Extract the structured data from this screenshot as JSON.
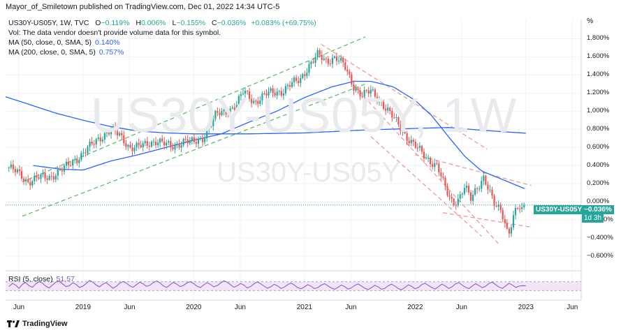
{
  "header": {
    "publisher_line": "Mayor_of_Smiletown published on TradingView.com, Dec 01, 2022 14:34 UTC-5",
    "unit": "%"
  },
  "legend": {
    "symbol_line": "US30Y-US05Y, 1W, TVC",
    "ohlc": {
      "open_label": "O",
      "open": "−0.119%",
      "high_label": "H",
      "high": "0.006%",
      "low_label": "L",
      "low": "−0.155%",
      "close_label": "C",
      "close": "−0.036%",
      "change": "+0.083% (+69.75%)"
    },
    "volume_note": "Vol: The data vendor doesn't provide volume data for this symbol.",
    "ma50_label": "MA (50, close, 0, SMA, 5)",
    "ma50_value": "0.140%",
    "ma200_label": "MA (200, close, 0, SMA, 5)",
    "ma200_value": "0.757%",
    "rsi_label": "RSI (5, close)",
    "rsi_value": "51.57"
  },
  "badges": {
    "symbol": "US30Y-US05Y",
    "price": "−0.036%",
    "countdown": "1d 3h"
  },
  "watermark": {
    "large": "US30Y-US05Y, 1W",
    "small": "US30Y-US05Y"
  },
  "footer": {
    "brand": "TradingView",
    "logo_icon": "tradingview-logo-icon"
  },
  "colors": {
    "up": "#26a69a",
    "down": "#ef5350",
    "ma": "#2962ff",
    "rsi": "#7e57c2",
    "green_channel": "#66bb6a",
    "red_channel": "#ef9a9a"
  },
  "chart_data": {
    "type": "candlestick",
    "title": "US30Y-US05Y, 1W, TVC",
    "ylabel": "%",
    "ylim": [
      -0.7,
      1.95
    ],
    "y_ticks": [
      "1.800%",
      "1.600%",
      "1.400%",
      "1.200%",
      "1.000%",
      "0.800%",
      "0.600%",
      "0.400%",
      "0.200%",
      "0.000%",
      "−0.200%",
      "−0.400%",
      "−0.600%"
    ],
    "y_tick_values": [
      1.8,
      1.6,
      1.4,
      1.2,
      1.0,
      0.8,
      0.6,
      0.4,
      0.2,
      0.0,
      -0.2,
      -0.4,
      -0.6
    ],
    "x_ticks": [
      "Jun",
      "2019",
      "Jun",
      "2020",
      "Jun",
      "2021",
      "Jun",
      "2022",
      "Jun",
      "2023",
      "Jun"
    ],
    "x_tick_times": [
      2018.42,
      2019.0,
      2019.42,
      2020.0,
      2020.42,
      2021.0,
      2021.42,
      2022.0,
      2022.42,
      2023.0,
      2023.42
    ],
    "xlim": [
      2018.3,
      2023.5
    ],
    "last_value": -0.036,
    "price_anchors": [
      [
        2018.33,
        0.38
      ],
      [
        2018.4,
        0.33
      ],
      [
        2018.5,
        0.22
      ],
      [
        2018.6,
        0.27
      ],
      [
        2018.7,
        0.27
      ],
      [
        2018.76,
        0.32
      ],
      [
        2018.84,
        0.38
      ],
      [
        2018.95,
        0.48
      ],
      [
        2019.05,
        0.6
      ],
      [
        2019.17,
        0.72
      ],
      [
        2019.25,
        0.8
      ],
      [
        2019.33,
        0.73
      ],
      [
        2019.42,
        0.6
      ],
      [
        2019.55,
        0.62
      ],
      [
        2019.67,
        0.68
      ],
      [
        2019.8,
        0.6
      ],
      [
        2019.92,
        0.68
      ],
      [
        2020.0,
        0.65
      ],
      [
        2020.08,
        0.7
      ],
      [
        2020.2,
        0.96
      ],
      [
        2020.3,
        1.0
      ],
      [
        2020.38,
        1.06
      ],
      [
        2020.45,
        1.22
      ],
      [
        2020.55,
        1.1
      ],
      [
        2020.67,
        1.2
      ],
      [
        2020.8,
        1.22
      ],
      [
        2020.88,
        1.3
      ],
      [
        2020.96,
        1.35
      ],
      [
        2021.04,
        1.5
      ],
      [
        2021.12,
        1.62
      ],
      [
        2021.2,
        1.55
      ],
      [
        2021.28,
        1.6
      ],
      [
        2021.36,
        1.5
      ],
      [
        2021.44,
        1.28
      ],
      [
        2021.52,
        1.18
      ],
      [
        2021.6,
        1.22
      ],
      [
        2021.72,
        1.06
      ],
      [
        2021.82,
        0.9
      ],
      [
        2021.92,
        0.72
      ],
      [
        2022.0,
        0.62
      ],
      [
        2022.1,
        0.48
      ],
      [
        2022.2,
        0.4
      ],
      [
        2022.28,
        0.12
      ],
      [
        2022.34,
        -0.02
      ],
      [
        2022.4,
        0.05
      ],
      [
        2022.45,
        0.18
      ],
      [
        2022.5,
        0.02
      ],
      [
        2022.56,
        0.15
      ],
      [
        2022.62,
        0.28
      ],
      [
        2022.67,
        0.12
      ],
      [
        2022.72,
        -0.05
      ],
      [
        2022.78,
        -0.1
      ],
      [
        2022.84,
        -0.35
      ],
      [
        2022.88,
        -0.2
      ],
      [
        2022.92,
        -0.05
      ],
      [
        2022.97,
        -0.119
      ],
      [
        2023.0,
        -0.036
      ]
    ],
    "ma50_anchors": [
      [
        2018.55,
        0.4
      ],
      [
        2018.8,
        0.36
      ],
      [
        2019.0,
        0.35
      ],
      [
        2019.25,
        0.45
      ],
      [
        2019.5,
        0.52
      ],
      [
        2019.75,
        0.6
      ],
      [
        2020.0,
        0.68
      ],
      [
        2020.25,
        0.75
      ],
      [
        2020.5,
        0.88
      ],
      [
        2020.75,
        1.0
      ],
      [
        2021.0,
        1.15
      ],
      [
        2021.25,
        1.27
      ],
      [
        2021.45,
        1.33
      ],
      [
        2021.6,
        1.33
      ],
      [
        2021.8,
        1.27
      ],
      [
        2022.0,
        1.12
      ],
      [
        2022.15,
        0.95
      ],
      [
        2022.3,
        0.72
      ],
      [
        2022.45,
        0.5
      ],
      [
        2022.6,
        0.34
      ],
      [
        2022.8,
        0.24
      ],
      [
        2023.0,
        0.14
      ]
    ],
    "ma200_anchors": [
      [
        2018.3,
        1.16
      ],
      [
        2018.5,
        1.08
      ],
      [
        2018.75,
        0.98
      ],
      [
        2019.0,
        0.9
      ],
      [
        2019.25,
        0.83
      ],
      [
        2019.5,
        0.78
      ],
      [
        2019.75,
        0.76
      ],
      [
        2020.0,
        0.75
      ],
      [
        2020.5,
        0.75
      ],
      [
        2021.0,
        0.76
      ],
      [
        2021.5,
        0.79
      ],
      [
        2022.0,
        0.81
      ],
      [
        2022.3,
        0.82
      ],
      [
        2022.6,
        0.79
      ],
      [
        2023.0,
        0.757
      ]
    ],
    "channels": [
      {
        "color": "green",
        "points": [
          [
            2018.45,
            0.22
          ],
          [
            2021.55,
            1.82
          ]
        ]
      },
      {
        "color": "green",
        "points": [
          [
            2018.45,
            -0.16
          ],
          [
            2021.55,
            1.3
          ]
        ]
      },
      {
        "color": "red",
        "points": [
          [
            2021.15,
            1.74
          ],
          [
            2022.65,
            0.58
          ]
        ]
      },
      {
        "color": "red",
        "points": [
          [
            2021.45,
            1.28
          ],
          [
            2022.75,
            -0.46
          ]
        ]
      },
      {
        "color": "red",
        "points": [
          [
            2021.6,
            0.72
          ],
          [
            2022.6,
            -0.38
          ]
        ]
      },
      {
        "color": "red",
        "points": [
          [
            2022.0,
            0.52
          ],
          [
            2023.05,
            0.18
          ]
        ]
      },
      {
        "color": "red",
        "points": [
          [
            2022.25,
            -0.12
          ],
          [
            2023.05,
            -0.28
          ]
        ]
      }
    ],
    "rsi": {
      "period": 5,
      "last": 51.57,
      "bands": [
        30,
        70
      ],
      "series": [
        48,
        62,
        55,
        40,
        58,
        66,
        52,
        45,
        60,
        70,
        63,
        50,
        42,
        55,
        68,
        72,
        60,
        48,
        52,
        65,
        58,
        44,
        50,
        62,
        75,
        68,
        55,
        47,
        59,
        66,
        53,
        41,
        49,
        63,
        71,
        64,
        52,
        45,
        57,
        68,
        60,
        49,
        54,
        66,
        73,
        65,
        51,
        44,
        56,
        67,
        59,
        48,
        53,
        64,
        70,
        62,
        50,
        43,
        55,
        66,
        58,
        47,
        52,
        63,
        74,
        68,
        57,
        45,
        51,
        62,
        55,
        42,
        48,
        60,
        69,
        61,
        50,
        41,
        47,
        58,
        52,
        40,
        45,
        56,
        64,
        55,
        44,
        38,
        46,
        57,
        50,
        39,
        43,
        54,
        61,
        52,
        42,
        36,
        44,
        55,
        48,
        37,
        42,
        53,
        60,
        51,
        41,
        35,
        43,
        54,
        47,
        36,
        40,
        52,
        59,
        50,
        39,
        34,
        45,
        56,
        49,
        38,
        44,
        57,
        63,
        53,
        43,
        37,
        48,
        59,
        51,
        40,
        47,
        60,
        66,
        55,
        45,
        39,
        50,
        61,
        53,
        43,
        49,
        62,
        68,
        57,
        46,
        40,
        51,
        63,
        55,
        44,
        50,
        52,
        51.57
      ]
    }
  }
}
